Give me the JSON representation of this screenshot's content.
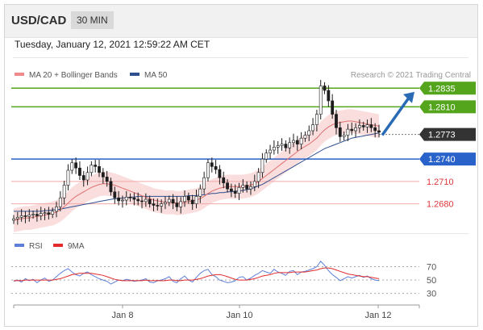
{
  "header": {
    "symbol": "USD/CAD",
    "timeframe": "30 MIN"
  },
  "timestamp": "Tuesday, January 12, 2021 12:59:22 AM CET",
  "legend": {
    "ma20_label": "MA 20 + Bollinger Bands",
    "ma50_label": "MA 50",
    "rsi_label": "RSI",
    "ma9_label": "9MA",
    "credit": "Research © 2021 Trading Central"
  },
  "colors": {
    "resistance": "#55a51c",
    "support": "#2962c9",
    "target": "#e0363a",
    "current": "#333333",
    "arrow": "#2a6bb5",
    "bollinger": "#f5c3c3",
    "ma20": "#e07070",
    "ma50": "#2f4f8f",
    "rsi": "#5d7fd8",
    "ma9": "#e32b2b"
  },
  "chart_data": [
    {
      "type": "candlestick",
      "xlabel": "",
      "ylabel": "",
      "x_ticks": [
        "Jan 8",
        "Jan 10",
        "Jan 12"
      ],
      "ylim": [
        1.2645,
        1.2845
      ],
      "levels": [
        {
          "price": "1.2835",
          "value": 1.2835,
          "kind": "resistance"
        },
        {
          "price": "1.2810",
          "value": 1.281,
          "kind": "resistance"
        },
        {
          "price": "1.2773",
          "value": 1.2773,
          "kind": "current"
        },
        {
          "price": "1.2740",
          "value": 1.274,
          "kind": "support"
        },
        {
          "price": "1.2710",
          "value": 1.271,
          "kind": "target"
        },
        {
          "price": "1.2680",
          "value": 1.268,
          "kind": "target"
        }
      ],
      "arrow": {
        "from": 1.2772,
        "to": 1.283,
        "direction": "up"
      },
      "close_series": [
        1.266,
        1.2662,
        1.2664,
        1.2663,
        1.2665,
        1.2666,
        1.2664,
        1.2667,
        1.2668,
        1.2666,
        1.267,
        1.2676,
        1.2688,
        1.2705,
        1.2725,
        1.2735,
        1.2728,
        1.2718,
        1.2712,
        1.2722,
        1.2732,
        1.273,
        1.2722,
        1.2716,
        1.271,
        1.2696,
        1.2688,
        1.2684,
        1.2685,
        1.2689,
        1.2688,
        1.2686,
        1.2684,
        1.2683,
        1.2686,
        1.268,
        1.2678,
        1.2677,
        1.268,
        1.2682,
        1.2686,
        1.2681,
        1.2676,
        1.2683,
        1.269,
        1.2685,
        1.268,
        1.269,
        1.27,
        1.2715,
        1.2735,
        1.273,
        1.2726,
        1.2715,
        1.2708,
        1.27,
        1.2697,
        1.2694,
        1.2702,
        1.2705,
        1.27,
        1.2703,
        1.271,
        1.2722,
        1.274,
        1.2748,
        1.2752,
        1.2756,
        1.2758,
        1.276,
        1.2755,
        1.2762,
        1.2765,
        1.276,
        1.2768,
        1.2772,
        1.2778,
        1.2786,
        1.28,
        1.2838,
        1.2832,
        1.2818,
        1.28,
        1.2782,
        1.277,
        1.2772,
        1.278,
        1.2778,
        1.2782,
        1.2785,
        1.2783,
        1.2786,
        1.2782,
        1.2778,
        1.2776
      ],
      "ma20": [
        1.2658,
        1.2659,
        1.266,
        1.2661,
        1.2661,
        1.2662,
        1.2663,
        1.2664,
        1.2665,
        1.2666,
        1.2667,
        1.2669,
        1.2672,
        1.2676,
        1.2681,
        1.2686,
        1.269,
        1.2693,
        1.2696,
        1.2699,
        1.2702,
        1.2704,
        1.2706,
        1.2707,
        1.2707,
        1.2706,
        1.2705,
        1.2703,
        1.2701,
        1.2699,
        1.2697,
        1.2695,
        1.2693,
        1.2691,
        1.2689,
        1.2687,
        1.2685,
        1.2684,
        1.2683,
        1.2682,
        1.2682,
        1.2682,
        1.2681,
        1.2681,
        1.2682,
        1.2683,
        1.2684,
        1.2685,
        1.2687,
        1.269,
        1.2694,
        1.2697,
        1.2699,
        1.2701,
        1.2702,
        1.2703,
        1.2703,
        1.2703,
        1.2703,
        1.2703,
        1.2704,
        1.2705,
        1.2707,
        1.271,
        1.2714,
        1.2718,
        1.2722,
        1.2726,
        1.273,
        1.2734,
        1.2738,
        1.2742,
        1.2746,
        1.275,
        1.2754,
        1.2757,
        1.276,
        1.2764,
        1.2768,
        1.2774,
        1.2779,
        1.2783,
        1.2786,
        1.2788,
        1.2789,
        1.279,
        1.2791,
        1.2791,
        1.279,
        1.2789,
        1.2788,
        1.2787,
        1.2786,
        1.2785,
        1.2784
      ],
      "ma50": [
        1.267,
        1.267,
        1.267,
        1.267,
        1.267,
        1.267,
        1.267,
        1.267,
        1.2671,
        1.2671,
        1.2672,
        1.2672,
        1.2673,
        1.2674,
        1.2675,
        1.2676,
        1.2677,
        1.2678,
        1.2679,
        1.268,
        1.2681,
        1.2682,
        1.2683,
        1.2684,
        1.2685,
        1.2686,
        1.2687,
        1.2687,
        1.2688,
        1.2688,
        1.2689,
        1.2689,
        1.269,
        1.269,
        1.269,
        1.269,
        1.269,
        1.269,
        1.269,
        1.269,
        1.269,
        1.269,
        1.269,
        1.269,
        1.269,
        1.2691,
        1.2691,
        1.2691,
        1.2692,
        1.2692,
        1.2693,
        1.2694,
        1.2694,
        1.2695,
        1.2695,
        1.2696,
        1.2696,
        1.2697,
        1.2697,
        1.2698,
        1.2699,
        1.27,
        1.2702,
        1.2704,
        1.2706,
        1.2709,
        1.2712,
        1.2715,
        1.2718,
        1.2721,
        1.2724,
        1.2727,
        1.273,
        1.2733,
        1.2736,
        1.2739,
        1.2742,
        1.2745,
        1.2748,
        1.2751,
        1.2754,
        1.2756,
        1.2758,
        1.276,
        1.2762,
        1.2764,
        1.2766,
        1.2768,
        1.2769,
        1.277,
        1.2771,
        1.2772,
        1.2773,
        1.2774,
        1.2775
      ],
      "band_width": 0.0016
    },
    {
      "type": "line",
      "title": "",
      "y_ticks": [
        "70",
        "50",
        "30"
      ],
      "ylim": [
        20,
        85
      ],
      "series": [
        {
          "name": "RSI",
          "values": [
            48,
            50,
            47,
            52,
            49,
            51,
            46,
            50,
            53,
            48,
            50,
            55,
            60,
            64,
            67,
            62,
            58,
            56,
            60,
            62,
            58,
            55,
            52,
            50,
            48,
            44,
            47,
            50,
            49,
            51,
            50,
            48,
            49,
            50,
            52,
            47,
            46,
            49,
            50,
            52,
            55,
            48,
            46,
            52,
            56,
            50,
            47,
            54,
            60,
            64,
            66,
            58,
            55,
            50,
            48,
            46,
            47,
            49,
            54,
            55,
            50,
            53,
            57,
            60,
            64,
            62,
            60,
            66,
            62,
            60,
            57,
            63,
            64,
            58,
            62,
            63,
            65,
            67,
            70,
            78,
            72,
            64,
            58,
            54,
            49,
            52,
            55,
            53,
            55,
            57,
            54,
            56,
            52,
            50,
            49
          ]
        },
        {
          "name": "9MA",
          "values": [
            49,
            49,
            49,
            50,
            50,
            50,
            50,
            50,
            50,
            50,
            50,
            51,
            52,
            54,
            56,
            58,
            59,
            60,
            60,
            60,
            60,
            59,
            58,
            57,
            55,
            53,
            51,
            50,
            49,
            49,
            49,
            49,
            49,
            49,
            50,
            49,
            49,
            49,
            49,
            49,
            50,
            50,
            49,
            49,
            50,
            50,
            50,
            51,
            52,
            54,
            56,
            57,
            58,
            58,
            57,
            55,
            53,
            51,
            50,
            50,
            50,
            51,
            52,
            54,
            56,
            57,
            58,
            60,
            61,
            61,
            61,
            61,
            62,
            62,
            62,
            62,
            63,
            64,
            65,
            67,
            68,
            68,
            67,
            65,
            63,
            61,
            59,
            58,
            57,
            56,
            55,
            55,
            54,
            53,
            52
          ]
        }
      ]
    }
  ]
}
